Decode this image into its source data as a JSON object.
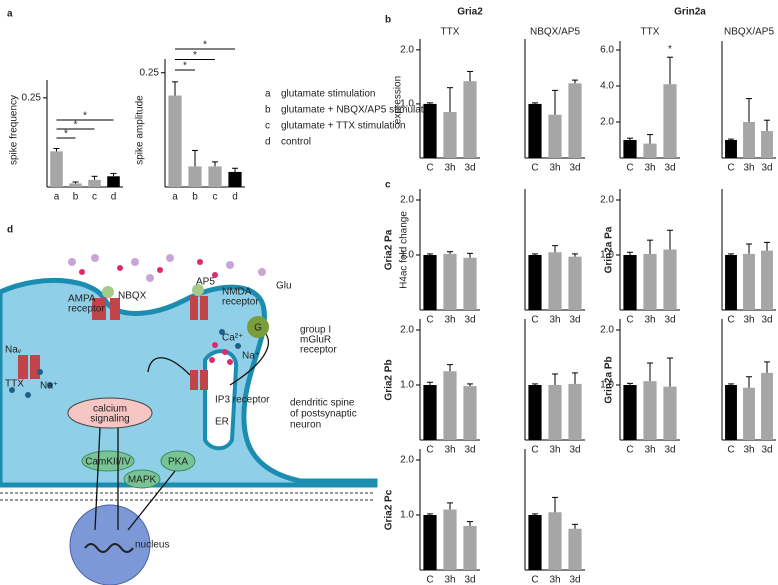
{
  "panel_labels": [
    "a",
    "b",
    "c",
    "d"
  ],
  "headers": [
    "Gria2",
    "Grin2a"
  ],
  "row_labels": [
    "Gria2 Pa",
    "Gria2 Pb",
    "Gria2 Pc",
    "Grin2a Pa",
    "Grin2a Pb"
  ],
  "chart_data": [
    {
      "type": "bar",
      "ylabel": "spike frequency",
      "categories": [
        "a",
        "b",
        "c",
        "d"
      ],
      "values": [
        0.1,
        0.01,
        0.02,
        0.03
      ],
      "errors": [
        0.008,
        0.004,
        0.01,
        0.008
      ],
      "colors": [
        "#a6a6a6",
        "#a6a6a6",
        "#a6a6a6",
        "#000000"
      ],
      "ylim": [
        0,
        0.3
      ],
      "yticks": [
        0.25
      ],
      "annotations": [
        "*",
        "*",
        "*"
      ]
    },
    {
      "type": "bar",
      "ylabel": "spike amplitude",
      "categories": [
        "a",
        "b",
        "c",
        "d"
      ],
      "values": [
        0.2,
        0.045,
        0.045,
        0.033
      ],
      "errors": [
        0.03,
        0.035,
        0.01,
        0.008
      ],
      "colors": [
        "#a6a6a6",
        "#a6a6a6",
        "#a6a6a6",
        "#000000"
      ],
      "ylim": [
        0,
        0.28
      ],
      "yticks": [
        0.25
      ],
      "annotations": [
        "*",
        "*",
        "*"
      ],
      "legend": [
        {
          "key": "a",
          "text": "glutamate stimulation"
        },
        {
          "key": "b",
          "text": "glutamate + NBQX/AP5 stimulation"
        },
        {
          "key": "c",
          "text": "glutamate + TTX stimulation"
        },
        {
          "key": "d",
          "text": "control"
        }
      ]
    },
    {
      "type": "bar",
      "title": "TTX",
      "ylabel": "expression",
      "categories": [
        "C",
        "3h",
        "3d"
      ],
      "values": [
        1.0,
        0.85,
        1.42
      ],
      "errors": [
        0.02,
        0.45,
        0.18
      ],
      "colors": [
        "#000000",
        "#a6a6a6",
        "#a6a6a6"
      ],
      "ylim": [
        0,
        2.2
      ],
      "yticks": [
        {
          "value": 1,
          "label": "1.0"
        },
        {
          "value": 2,
          "label": "2.0"
        }
      ]
    },
    {
      "type": "bar",
      "title": "NBQX/AP5",
      "categories": [
        "C",
        "3h",
        "3d"
      ],
      "values": [
        1.0,
        0.8,
        1.38
      ],
      "errors": [
        0.02,
        0.45,
        0.06
      ],
      "colors": [
        "#000000",
        "#a6a6a6",
        "#a6a6a6"
      ],
      "ylim": [
        0,
        2.2
      ]
    },
    {
      "type": "bar",
      "title": "TTX",
      "categories": [
        "C",
        "3h",
        "3d"
      ],
      "values": [
        1.0,
        0.8,
        4.1
      ],
      "errors": [
        0.1,
        0.5,
        1.5
      ],
      "colors": [
        "#000000",
        "#a6a6a6",
        "#a6a6a6"
      ],
      "ylim": [
        0,
        6.5
      ],
      "yticks": [
        {
          "value": 2,
          "label": "2.0"
        },
        {
          "value": 4,
          "label": "4.0"
        },
        {
          "value": 6,
          "label": "6.0"
        }
      ],
      "annotations": [
        "*"
      ]
    },
    {
      "type": "bar",
      "title": "NBQX/AP5",
      "categories": [
        "C",
        "3h",
        "3d"
      ],
      "values": [
        1.0,
        2.0,
        1.5
      ],
      "errors": [
        0.05,
        1.3,
        0.6
      ],
      "colors": [
        "#000000",
        "#a6a6a6",
        "#a6a6a6"
      ],
      "ylim": [
        0,
        6.5
      ]
    },
    {
      "type": "bar",
      "ylabel": "H4ac fold change",
      "categories": [
        "C",
        "3h",
        "3d"
      ],
      "values": [
        1.0,
        1.02,
        0.95
      ],
      "errors": [
        0.02,
        0.04,
        0.08
      ],
      "colors": [
        "#000000",
        "#a6a6a6",
        "#a6a6a6"
      ],
      "ylim": [
        0,
        2.2
      ],
      "yticks": [
        {
          "value": 1,
          "label": "1.0"
        },
        {
          "value": 2,
          "label": "2.0"
        }
      ]
    },
    {
      "type": "bar",
      "categories": [
        "C",
        "3h",
        "3d"
      ],
      "values": [
        1.0,
        1.05,
        0.97
      ],
      "errors": [
        0.02,
        0.12,
        0.05
      ],
      "colors": [
        "#000000",
        "#a6a6a6",
        "#a6a6a6"
      ],
      "ylim": [
        0,
        2.2
      ]
    },
    {
      "type": "bar",
      "categories": [
        "C",
        "3h",
        "3d"
      ],
      "values": [
        1.0,
        1.25,
        0.98
      ],
      "errors": [
        0.05,
        0.12,
        0.04
      ],
      "colors": [
        "#000000",
        "#a6a6a6",
        "#a6a6a6"
      ],
      "ylim": [
        0,
        2.2
      ],
      "yticks": [
        {
          "value": 1,
          "label": "1.0"
        },
        {
          "value": 2,
          "label": "2.0"
        }
      ]
    },
    {
      "type": "bar",
      "categories": [
        "C",
        "3h",
        "3d"
      ],
      "values": [
        1.0,
        1.0,
        1.02
      ],
      "errors": [
        0.02,
        0.2,
        0.2
      ],
      "colors": [
        "#000000",
        "#a6a6a6",
        "#a6a6a6"
      ],
      "ylim": [
        0,
        2.2
      ]
    },
    {
      "type": "bar",
      "categories": [
        "C",
        "3h",
        "3d"
      ],
      "values": [
        1.0,
        1.1,
        0.8
      ],
      "errors": [
        0.02,
        0.12,
        0.08
      ],
      "colors": [
        "#000000",
        "#a6a6a6",
        "#a6a6a6"
      ],
      "ylim": [
        0,
        2.2
      ],
      "yticks": [
        {
          "value": 1,
          "label": "1.0"
        },
        {
          "value": 2,
          "label": "2.0"
        }
      ]
    },
    {
      "type": "bar",
      "categories": [
        "C",
        "3h",
        "3d"
      ],
      "values": [
        1.0,
        1.05,
        0.75
      ],
      "errors": [
        0.02,
        0.27,
        0.08
      ],
      "colors": [
        "#000000",
        "#a6a6a6",
        "#a6a6a6"
      ],
      "ylim": [
        0,
        2.2
      ]
    },
    {
      "type": "bar",
      "categories": [
        "C",
        "3h",
        "3d"
      ],
      "values": [
        1.0,
        1.02,
        1.1
      ],
      "errors": [
        0.05,
        0.25,
        0.35
      ],
      "colors": [
        "#000000",
        "#a6a6a6",
        "#a6a6a6"
      ],
      "ylim": [
        0,
        2.2
      ],
      "yticks": [
        {
          "value": 1,
          "label": "1.0"
        },
        {
          "value": 2,
          "label": "2.0"
        }
      ]
    },
    {
      "type": "bar",
      "categories": [
        "C",
        "3h",
        "3d"
      ],
      "values": [
        1.0,
        1.02,
        1.08
      ],
      "errors": [
        0.02,
        0.18,
        0.15
      ],
      "colors": [
        "#000000",
        "#a6a6a6",
        "#a6a6a6"
      ],
      "ylim": [
        0,
        2.2
      ]
    },
    {
      "type": "bar",
      "categories": [
        "C",
        "3h",
        "3d"
      ],
      "values": [
        1.0,
        1.07,
        0.97
      ],
      "errors": [
        0.03,
        0.33,
        0.52
      ],
      "colors": [
        "#000000",
        "#a6a6a6",
        "#a6a6a6"
      ],
      "ylim": [
        0,
        2.2
      ],
      "yticks": [
        {
          "value": 1,
          "label": "1.0"
        },
        {
          "value": 2,
          "label": "2.0"
        }
      ]
    },
    {
      "type": "bar",
      "categories": [
        "C",
        "3h",
        "3d"
      ],
      "values": [
        1.0,
        0.95,
        1.22
      ],
      "errors": [
        0.02,
        0.2,
        0.2
      ],
      "colors": [
        "#000000",
        "#a6a6a6",
        "#a6a6a6"
      ],
      "ylim": [
        0,
        2.2
      ]
    }
  ],
  "diagram": {
    "labels": [
      "AMPA",
      "receptor",
      "NBQX",
      "AP5",
      "NMDA",
      "receptor",
      "Glu",
      "G",
      "group I",
      "mGluR",
      "receptor",
      "Naᵥ",
      "TTX",
      "Na⁺",
      "Ca²⁺",
      "Na⁺",
      "calcium",
      "signaling",
      "CamKII/IV",
      "PKA",
      "MAPK",
      "IP3 receptor",
      "ER",
      "dendritic spine",
      "of postsynaptic",
      "neuron",
      "nucleus"
    ]
  }
}
